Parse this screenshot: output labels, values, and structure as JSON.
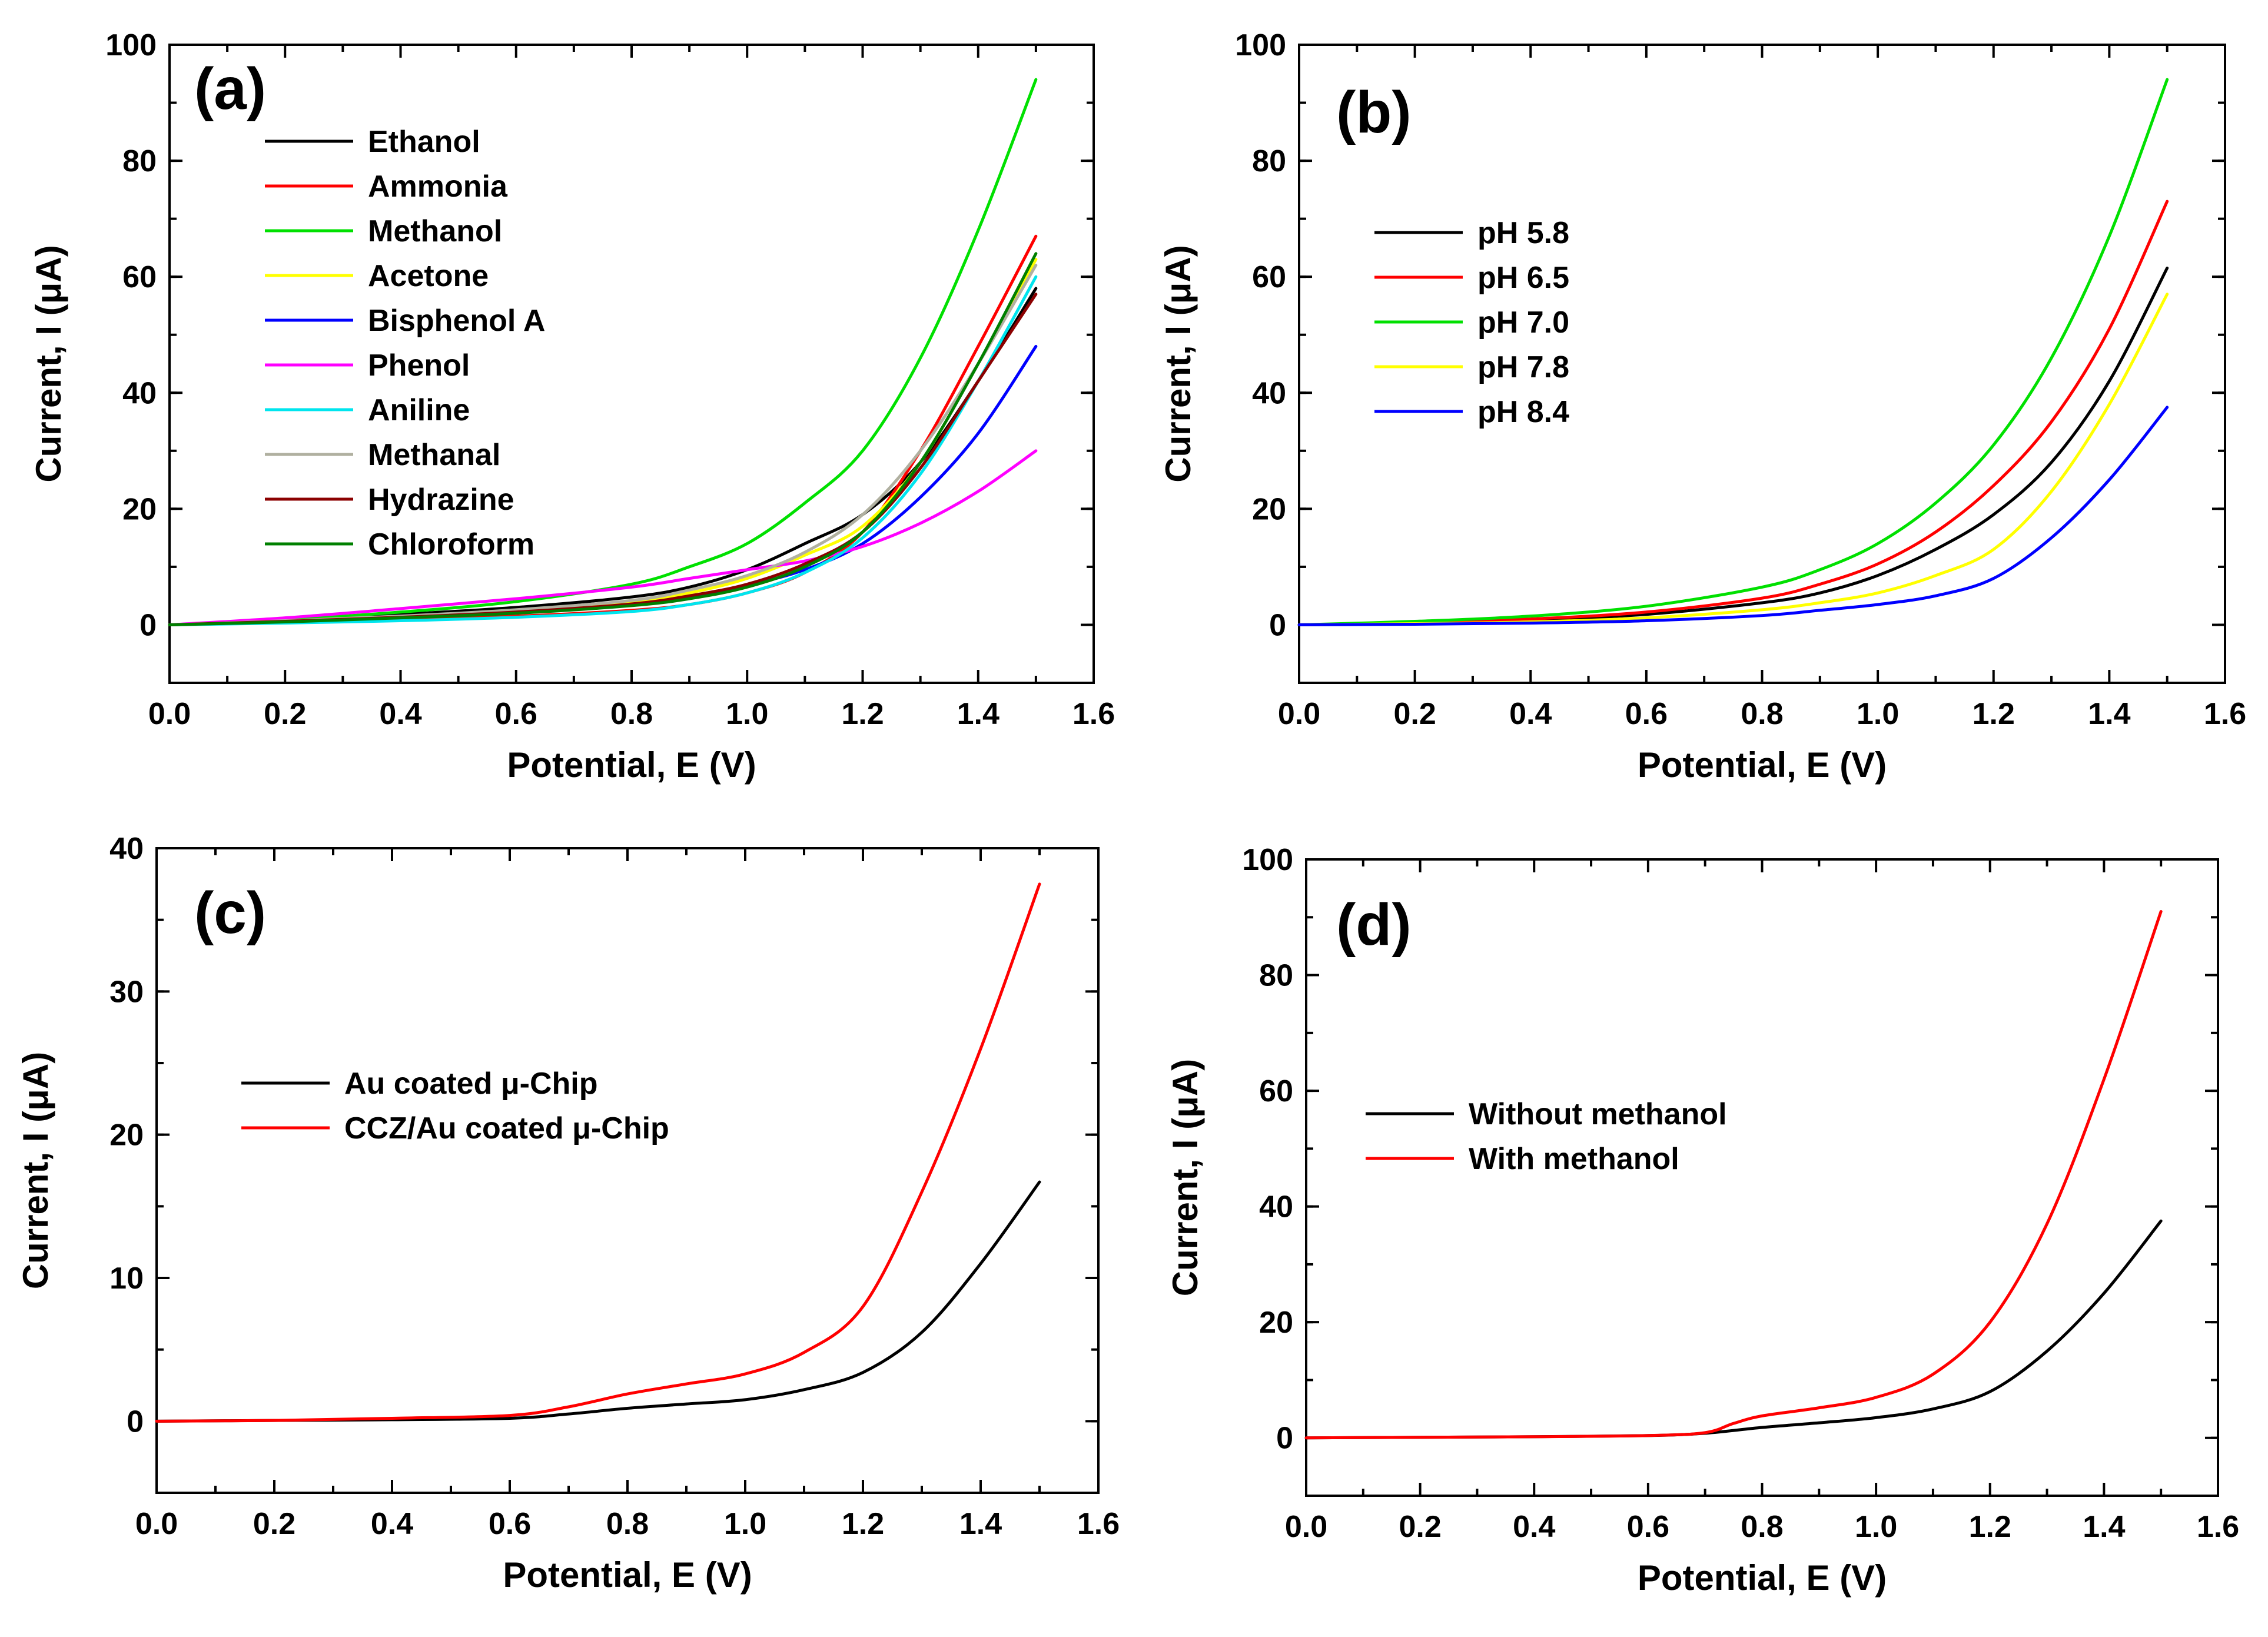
{
  "chart_data": [
    {
      "panel": "(a)",
      "type": "line",
      "xlabel": "Potential, E (V)",
      "ylabel": "Current, I (μA)",
      "xlim": [
        0,
        1.6
      ],
      "ylim": [
        -10,
        100
      ],
      "xticks": [
        "0.0",
        "0.2",
        "0.4",
        "0.6",
        "0.8",
        "1.0",
        "1.2",
        "1.4",
        "1.6"
      ],
      "yticks": [
        "0",
        "20",
        "40",
        "60",
        "80",
        "100"
      ],
      "legend_position": "top-left",
      "series": [
        {
          "name": "Ethanol",
          "color": "#000000",
          "x": [
            0,
            0.2,
            0.4,
            0.6,
            0.8,
            0.9,
            1.0,
            1.1,
            1.2,
            1.3,
            1.4,
            1.5
          ],
          "y": [
            0,
            0.8,
            1.8,
            3.0,
            4.8,
            6.5,
            9.5,
            14,
            19,
            28,
            42,
            58
          ]
        },
        {
          "name": "Ammonia",
          "color": "#ff0000",
          "x": [
            0,
            0.2,
            0.4,
            0.6,
            0.8,
            0.9,
            1.0,
            1.1,
            1.2,
            1.3,
            1.4,
            1.5
          ],
          "y": [
            0,
            0.5,
            1.0,
            1.5,
            2.5,
            3.5,
            5.5,
            9,
            16,
            30,
            48,
            67
          ]
        },
        {
          "name": "Methanol",
          "color": "#00e000",
          "x": [
            0,
            0.2,
            0.4,
            0.6,
            0.8,
            0.9,
            1.0,
            1.1,
            1.2,
            1.3,
            1.4,
            1.5
          ],
          "y": [
            0,
            0.9,
            2.2,
            4.0,
            7.0,
            10,
            14,
            21,
            30,
            46,
            68,
            94
          ]
        },
        {
          "name": "Acetone",
          "color": "#ffff00",
          "x": [
            0,
            0.2,
            0.4,
            0.6,
            0.8,
            0.9,
            1.0,
            1.1,
            1.2,
            1.3,
            1.4,
            1.5
          ],
          "y": [
            0,
            0.6,
            1.4,
            2.4,
            4.0,
            5.5,
            8,
            12,
            17,
            28,
            45,
            63
          ]
        },
        {
          "name": "Bisphenol A",
          "color": "#0000ff",
          "x": [
            0,
            0.2,
            0.4,
            0.6,
            0.8,
            0.9,
            1.0,
            1.1,
            1.2,
            1.3,
            1.4,
            1.5
          ],
          "y": [
            0,
            0.6,
            1.3,
            2.2,
            3.5,
            4.8,
            6.8,
            9.5,
            14,
            22,
            33,
            48
          ]
        },
        {
          "name": "Phenol",
          "color": "#ff00ff",
          "x": [
            0,
            0.2,
            0.4,
            0.6,
            0.8,
            0.9,
            1.0,
            1.1,
            1.2,
            1.3,
            1.4,
            1.5
          ],
          "y": [
            0,
            1.2,
            2.8,
            4.5,
            6.5,
            8,
            9.5,
            11,
            13.5,
            17.5,
            23,
            30
          ]
        },
        {
          "name": "Aniline",
          "color": "#00e5ee",
          "x": [
            0,
            0.2,
            0.4,
            0.6,
            0.8,
            0.9,
            1.0,
            1.1,
            1.2,
            1.3,
            1.4,
            1.5
          ],
          "y": [
            0,
            0.3,
            0.7,
            1.3,
            2.3,
            3.5,
            5.5,
            9,
            15,
            26,
            42,
            60
          ]
        },
        {
          "name": "Methanal",
          "color": "#b0b0a0",
          "x": [
            0,
            0.2,
            0.4,
            0.6,
            0.8,
            0.9,
            1.0,
            1.1,
            1.2,
            1.3,
            1.4,
            1.5
          ],
          "y": [
            0,
            0.7,
            1.5,
            2.6,
            4.2,
            6,
            8.5,
            12.5,
            19,
            30,
            45,
            62
          ]
        },
        {
          "name": "Hydrazine",
          "color": "#8b0000",
          "x": [
            0,
            0.2,
            0.4,
            0.6,
            0.8,
            0.9,
            1.0,
            1.1,
            1.2,
            1.3,
            1.4,
            1.5
          ],
          "y": [
            0,
            0.6,
            1.3,
            2.2,
            3.6,
            5,
            7,
            10.5,
            16,
            27,
            42,
            57
          ]
        },
        {
          "name": "Chloroform",
          "color": "#008000",
          "x": [
            0,
            0.2,
            0.4,
            0.6,
            0.8,
            0.9,
            1.0,
            1.1,
            1.2,
            1.3,
            1.4,
            1.5
          ],
          "y": [
            0,
            0.5,
            1.2,
            2.0,
            3.3,
            4.5,
            6.5,
            10,
            16,
            28,
            45,
            64
          ]
        }
      ]
    },
    {
      "panel": "(b)",
      "type": "line",
      "xlabel": "Potential, E (V)",
      "ylabel": "Current, I (μA)",
      "xlim": [
        0,
        1.6
      ],
      "ylim": [
        -10,
        100
      ],
      "xticks": [
        "0.0",
        "0.2",
        "0.4",
        "0.6",
        "0.8",
        "1.0",
        "1.2",
        "1.4",
        "1.6"
      ],
      "yticks": [
        "0",
        "20",
        "40",
        "60",
        "80",
        "100"
      ],
      "legend_position": "middle-left",
      "series": [
        {
          "name": "pH 5.8",
          "color": "#000000",
          "x": [
            0,
            0.2,
            0.4,
            0.6,
            0.8,
            0.9,
            1.0,
            1.1,
            1.2,
            1.3,
            1.4,
            1.5
          ],
          "y": [
            0,
            0.3,
            0.8,
            1.8,
            3.8,
            5.5,
            8.5,
            13,
            19,
            28,
            42,
            61.5
          ]
        },
        {
          "name": "pH 6.5",
          "color": "#ff0000",
          "x": [
            0,
            0.2,
            0.4,
            0.6,
            0.8,
            0.9,
            1.0,
            1.1,
            1.2,
            1.3,
            1.4,
            1.5
          ],
          "y": [
            0,
            0.4,
            1.0,
            2.2,
            4.6,
            7,
            10.5,
            16,
            24,
            35,
            51,
            73
          ]
        },
        {
          "name": "pH 7.0",
          "color": "#00e000",
          "x": [
            0,
            0.2,
            0.4,
            0.6,
            0.8,
            0.9,
            1.0,
            1.1,
            1.2,
            1.3,
            1.4,
            1.5
          ],
          "y": [
            0,
            0.6,
            1.5,
            3.2,
            6.5,
            9.5,
            14,
            21,
            31,
            46,
            67,
            94
          ]
        },
        {
          "name": "pH 7.8",
          "color": "#ffff00",
          "x": [
            0,
            0.2,
            0.4,
            0.6,
            0.8,
            0.9,
            1.0,
            1.1,
            1.2,
            1.3,
            1.4,
            1.5
          ],
          "y": [
            0,
            0.2,
            0.5,
            1.2,
            2.6,
            3.8,
            5.5,
            8.5,
            13,
            23,
            38,
            57
          ]
        },
        {
          "name": "pH 8.4",
          "color": "#0000ff",
          "x": [
            0,
            0.2,
            0.4,
            0.6,
            0.8,
            0.9,
            1.0,
            1.1,
            1.2,
            1.3,
            1.4,
            1.5
          ],
          "y": [
            0,
            0.1,
            0.3,
            0.7,
            1.6,
            2.5,
            3.5,
            5,
            8,
            15,
            25,
            37.5
          ]
        }
      ]
    },
    {
      "panel": "(c)",
      "type": "line",
      "xlabel": "Potential, E (V)",
      "ylabel": "Current, I (μA)",
      "xlim": [
        0,
        1.6
      ],
      "ylim": [
        -5,
        40
      ],
      "xticks": [
        "0.0",
        "0.2",
        "0.4",
        "0.6",
        "0.8",
        "1.0",
        "1.2",
        "1.4",
        "1.6"
      ],
      "yticks": [
        "0",
        "10",
        "20",
        "30",
        "40"
      ],
      "legend_position": "middle-left",
      "series": [
        {
          "name": "Au coated μ-Chip",
          "color": "#000000",
          "x": [
            0,
            0.2,
            0.4,
            0.6,
            0.7,
            0.8,
            0.9,
            1.0,
            1.1,
            1.2,
            1.3,
            1.4,
            1.5
          ],
          "y": [
            0,
            0.05,
            0.1,
            0.2,
            0.5,
            0.9,
            1.2,
            1.5,
            2.2,
            3.4,
            6.2,
            11,
            16.7
          ]
        },
        {
          "name": "CCZ/Au coated μ-Chip",
          "color": "#ff0000",
          "x": [
            0,
            0.2,
            0.4,
            0.6,
            0.7,
            0.8,
            0.9,
            1.0,
            1.1,
            1.2,
            1.3,
            1.4,
            1.5
          ],
          "y": [
            0,
            0.05,
            0.2,
            0.4,
            1.0,
            1.9,
            2.6,
            3.3,
            4.8,
            8,
            16,
            26,
            37.5
          ]
        }
      ]
    },
    {
      "panel": "(d)",
      "type": "line",
      "xlabel": "Potential, E (V)",
      "ylabel": "Current, I (μA)",
      "xlim": [
        0,
        1.6
      ],
      "ylim": [
        -10,
        100
      ],
      "xticks": [
        "0.0",
        "0.2",
        "0.4",
        "0.6",
        "0.8",
        "1.0",
        "1.2",
        "1.4",
        "1.6"
      ],
      "yticks": [
        "0",
        "20",
        "40",
        "60",
        "80",
        "100"
      ],
      "legend_position": "middle-left",
      "series": [
        {
          "name": "Without methanol",
          "color": "#000000",
          "x": [
            0,
            0.2,
            0.4,
            0.6,
            0.7,
            0.8,
            0.9,
            1.0,
            1.1,
            1.2,
            1.3,
            1.4,
            1.5
          ],
          "y": [
            0,
            0.1,
            0.2,
            0.4,
            0.8,
            1.8,
            2.6,
            3.5,
            5,
            8,
            15,
            25,
            37.5
          ]
        },
        {
          "name": "With methanol",
          "color": "#ff0000",
          "x": [
            0,
            0.2,
            0.4,
            0.6,
            0.7,
            0.75,
            0.8,
            0.9,
            1.0,
            1.1,
            1.2,
            1.3,
            1.4,
            1.5
          ],
          "y": [
            0,
            0.1,
            0.2,
            0.4,
            0.9,
            2.5,
            3.8,
            5.2,
            7,
            11,
            20,
            37,
            62,
            91
          ]
        }
      ]
    }
  ]
}
